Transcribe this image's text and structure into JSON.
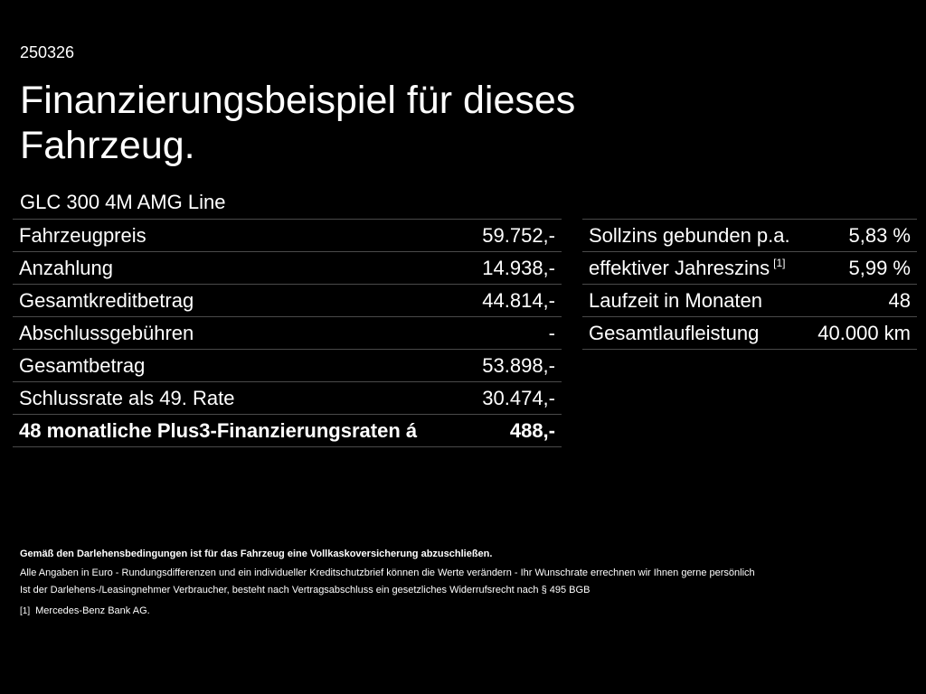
{
  "header": {
    "reference": "250326",
    "title": "Finanzierungsbeispiel für dieses Fahrzeug.",
    "model": "GLC 300 4M AMG Line"
  },
  "left_table": {
    "rows": [
      {
        "label": "Fahrzeugpreis",
        "value": "59.752,-"
      },
      {
        "label": "Anzahlung",
        "value": "14.938,-"
      },
      {
        "label": "Gesamtkreditbetrag",
        "value": "44.814,-"
      },
      {
        "label": "Abschlussgebühren",
        "value": "-"
      },
      {
        "label": "Gesamtbetrag",
        "value": "53.898,-"
      },
      {
        "label": "Schlussrate als 49. Rate",
        "value": "30.474,-"
      },
      {
        "label": "48 monatliche Plus3-Finanzierungsraten á",
        "value": "488,-"
      }
    ]
  },
  "right_table": {
    "rows": [
      {
        "label": "Sollzins gebunden p.a.",
        "value": "5,83 %"
      },
      {
        "label": "effektiver Jahreszins",
        "footnote": "[1]",
        "value": "5,99 %"
      },
      {
        "label": "Laufzeit in Monaten",
        "value": "48"
      },
      {
        "label": "Gesamtlaufleistung",
        "value": "40.000 km"
      }
    ]
  },
  "footer": {
    "insurance_note": "Gemäß den Darlehensbedingungen ist für das Fahrzeug eine Vollkaskoversicherung abzuschließen.",
    "disclaimer_line1": "Alle Angaben in Euro - Rundungsdifferenzen und ein individueller Kreditschutzbrief können die Werte verändern - Ihr Wunschrate errechnen wir Ihnen gerne persönlich",
    "disclaimer_line2": "Ist der Darlehens-/Leasingnehmer Verbraucher, besteht nach Vertragsabschluss ein gesetzliches Widerrufsrecht nach § 495 BGB",
    "footnote_mark": "[1]",
    "footnote_text": "Mercedes-Benz Bank AG."
  }
}
